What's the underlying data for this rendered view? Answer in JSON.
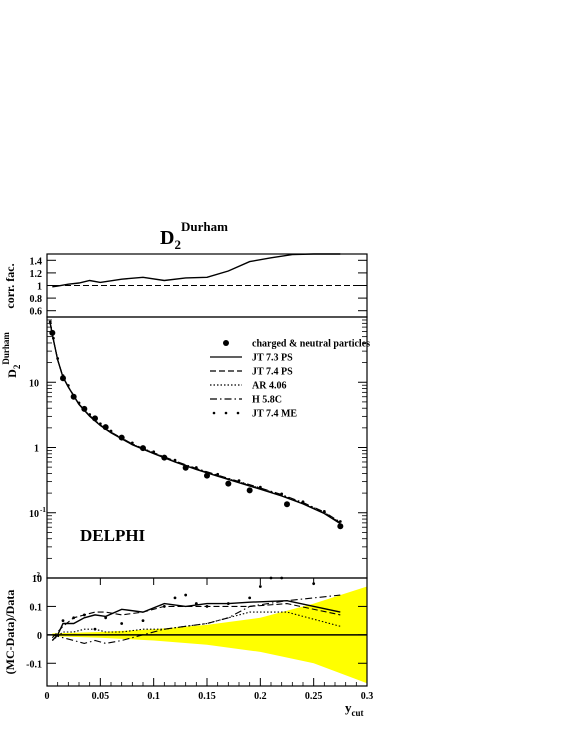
{
  "figure": {
    "title_main": "D",
    "title_sub": "2",
    "title_sup": "Durham"
  },
  "chart_data": [
    {
      "type": "line",
      "panel": "top",
      "ylabel": "corr. fac.",
      "xlim": [
        0,
        0.3
      ],
      "ylim": [
        0.5,
        1.5
      ],
      "yticks": [
        0.6,
        0.8,
        1,
        1.2,
        1.4
      ],
      "ytick_labels": [
        "0.6",
        "0.8",
        "1",
        "1.2",
        "1.4"
      ],
      "series": [
        {
          "style": "solid",
          "x": [
            0.005,
            0.01,
            0.02,
            0.03,
            0.04,
            0.05,
            0.07,
            0.09,
            0.11,
            0.13,
            0.15,
            0.17,
            0.19,
            0.21,
            0.23,
            0.25,
            0.275
          ],
          "y": [
            0.98,
            0.99,
            1.02,
            1.04,
            1.08,
            1.05,
            1.1,
            1.13,
            1.08,
            1.12,
            1.13,
            1.23,
            1.38,
            1.44,
            1.49,
            1.5,
            1.5
          ]
        },
        {
          "style": "dashed",
          "x": [
            0,
            0.3
          ],
          "y": [
            1.0,
            1.0
          ]
        }
      ]
    },
    {
      "type": "line",
      "panel": "middle",
      "ylabel_main": "D",
      "ylabel_sub": "2",
      "ylabel_sup": "Durham",
      "yscale": "log",
      "xlim": [
        0,
        0.3
      ],
      "ylim": [
        0.01,
        100
      ],
      "ytick_labels": [
        {
          "base": "10",
          "exp": ""
        },
        {
          "base": "1",
          "exp": ""
        },
        {
          "base": "10",
          "exp": "-1"
        },
        {
          "base": "",
          "exp": "-2"
        }
      ],
      "annotation": "DELPHI",
      "legend": {
        "position": "top-right",
        "entries": [
          {
            "label": "charged & neutral particles",
            "marker": "dot"
          },
          {
            "label": "JT 7.3 PS",
            "style": "solid"
          },
          {
            "label": "JT 7.4 PS",
            "style": "dashed"
          },
          {
            "label": "AR 4.06",
            "style": "dotted"
          },
          {
            "label": "H 5.8C",
            "style": "dashdot"
          },
          {
            "label": "JT 7.4 ME",
            "style": "sparse-dots"
          }
        ]
      },
      "data_points": {
        "x": [
          0.005,
          0.015,
          0.025,
          0.035,
          0.045,
          0.055,
          0.07,
          0.09,
          0.11,
          0.13,
          0.15,
          0.17,
          0.19,
          0.225,
          0.275
        ],
        "y": [
          57,
          11.5,
          6.0,
          3.9,
          2.8,
          2.05,
          1.42,
          0.98,
          0.7,
          0.49,
          0.37,
          0.28,
          0.22,
          0.135,
          0.062
        ]
      },
      "mc_curve": {
        "x": [
          0.003,
          0.006,
          0.01,
          0.015,
          0.02,
          0.03,
          0.04,
          0.05,
          0.06,
          0.08,
          0.1,
          0.12,
          0.14,
          0.16,
          0.18,
          0.2,
          0.22,
          0.24,
          0.26,
          0.275
        ],
        "y": [
          80,
          45,
          22,
          12,
          8.5,
          4.6,
          3.05,
          2.2,
          1.7,
          1.12,
          0.82,
          0.61,
          0.47,
          0.37,
          0.295,
          0.235,
          0.185,
          0.14,
          0.1,
          0.07
        ]
      }
    },
    {
      "type": "line",
      "panel": "bottom",
      "ylabel": "(MC-Data)/Data",
      "xlabel_main": "y",
      "xlabel_sub": "cut",
      "xlim": [
        0,
        0.3
      ],
      "ylim": [
        -0.18,
        0.2
      ],
      "xticks": [
        0,
        0.05,
        0.1,
        0.15,
        0.2,
        0.25,
        0.3
      ],
      "xtick_labels": [
        "0",
        "0.05",
        "0.1",
        "0.15",
        "0.2",
        "0.25",
        "0.3"
      ],
      "yticks": [
        -0.1,
        0,
        0.1
      ],
      "ytick_labels": [
        "-0.1",
        "0",
        "0.1"
      ],
      "corner_label": "10",
      "band_color": "#ffff00",
      "band": {
        "x": [
          0.005,
          0.05,
          0.1,
          0.15,
          0.2,
          0.25,
          0.3
        ],
        "upper": [
          0.005,
          0.01,
          0.02,
          0.035,
          0.06,
          0.11,
          0.17
        ],
        "lower": [
          -0.005,
          -0.01,
          -0.02,
          -0.035,
          -0.06,
          -0.1,
          -0.17
        ]
      },
      "series": [
        {
          "name": "JT 7.3 PS",
          "style": "solid",
          "x": [
            0.005,
            0.01,
            0.015,
            0.025,
            0.035,
            0.045,
            0.055,
            0.07,
            0.09,
            0.11,
            0.13,
            0.15,
            0.17,
            0.19,
            0.225,
            0.275
          ],
          "y": [
            -0.02,
            0.0,
            0.04,
            0.04,
            0.06,
            0.07,
            0.065,
            0.09,
            0.08,
            0.11,
            0.1,
            0.11,
            0.11,
            0.115,
            0.12,
            0.08
          ]
        },
        {
          "name": "JT 7.4 PS",
          "style": "dashed",
          "x": [
            0.005,
            0.015,
            0.025,
            0.035,
            0.045,
            0.055,
            0.07,
            0.09,
            0.11,
            0.13,
            0.15,
            0.17,
            0.19,
            0.225,
            0.275
          ],
          "y": [
            -0.01,
            0.03,
            0.06,
            0.07,
            0.08,
            0.08,
            0.07,
            0.08,
            0.1,
            0.1,
            0.1,
            0.1,
            0.1,
            0.11,
            0.07
          ]
        },
        {
          "name": "AR 4.06",
          "style": "dotted",
          "x": [
            0.005,
            0.015,
            0.025,
            0.035,
            0.045,
            0.055,
            0.07,
            0.09,
            0.11,
            0.13,
            0.15,
            0.17,
            0.19,
            0.225,
            0.275
          ],
          "y": [
            -0.02,
            0.01,
            0.01,
            0.02,
            0.02,
            0.01,
            0.01,
            0.02,
            0.02,
            0.03,
            0.04,
            0.06,
            0.08,
            0.08,
            0.03
          ]
        },
        {
          "name": "H 5.8C",
          "style": "dashdot",
          "x": [
            0.005,
            0.015,
            0.025,
            0.035,
            0.045,
            0.055,
            0.07,
            0.09,
            0.11,
            0.13,
            0.15,
            0.17,
            0.19,
            0.225,
            0.275
          ],
          "y": [
            0.0,
            -0.01,
            -0.02,
            -0.03,
            -0.02,
            -0.03,
            -0.02,
            0.0,
            0.02,
            0.03,
            0.04,
            0.06,
            0.1,
            0.12,
            0.14
          ]
        },
        {
          "name": "JT 7.4 ME",
          "style": "sparse-dots",
          "x": [
            0.015,
            0.025,
            0.035,
            0.045,
            0.055,
            0.07,
            0.09,
            0.11,
            0.12,
            0.13,
            0.14,
            0.15,
            0.17,
            0.19,
            0.2,
            0.21,
            0.22,
            0.25
          ],
          "y": [
            0.05,
            0.06,
            0.07,
            0.02,
            0.06,
            0.04,
            0.05,
            0.1,
            0.13,
            0.14,
            0.11,
            0.1,
            0.11,
            0.13,
            0.17,
            0.2,
            0.2,
            0.18
          ]
        }
      ]
    }
  ]
}
